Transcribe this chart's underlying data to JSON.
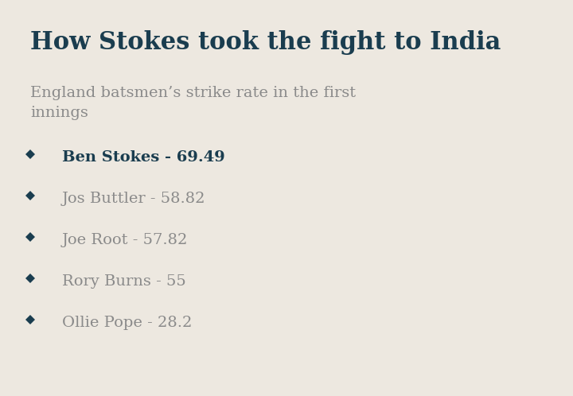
{
  "title": "How Stokes took the fight to India",
  "subtitle": "England batsmen’s strike rate in the first\ninnings",
  "background_color": "#ede8e0",
  "title_color": "#1a3d4f",
  "subtitle_color": "#8a8a8a",
  "diamond_color": "#1a3d4f",
  "players": [
    {
      "name": "Ben Stokes - 69.49",
      "bold": true
    },
    {
      "name": "Jos Buttler - 58.82",
      "bold": false
    },
    {
      "name": "Joe Root - 57.82",
      "bold": false
    },
    {
      "name": "Rory Burns - 55",
      "bold": false
    },
    {
      "name": "Ollie Pope - 28.2",
      "bold": false
    }
  ],
  "title_fontsize": 22,
  "subtitle_fontsize": 14,
  "player_fontsize": 14,
  "figsize": [
    7.2,
    4.98
  ],
  "dpi": 100
}
